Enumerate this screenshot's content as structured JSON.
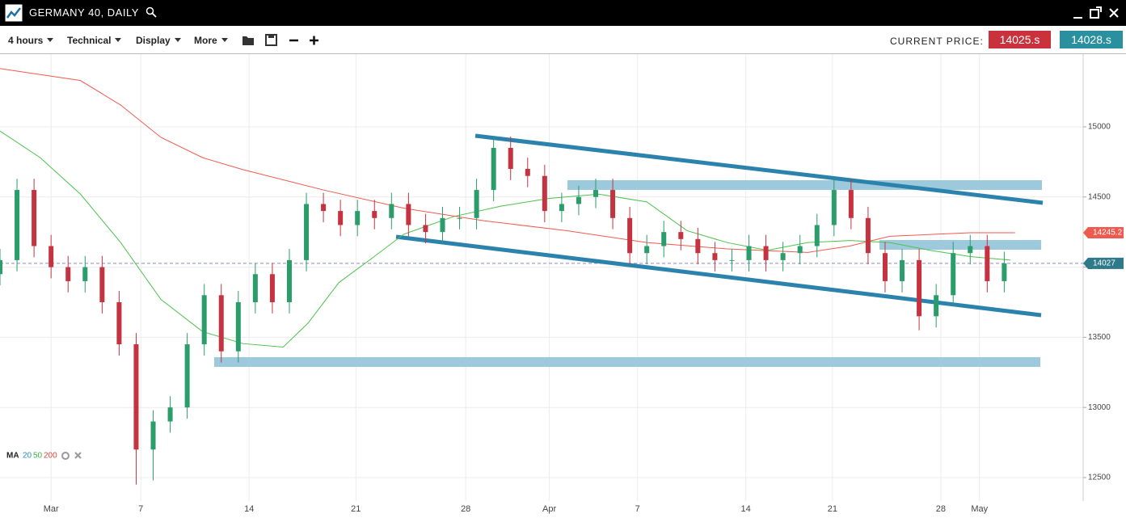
{
  "header": {
    "title": "GERMANY 40, DAILY"
  },
  "toolbar": {
    "menus": [
      "4 hours",
      "Technical",
      "Display",
      "More"
    ],
    "price_caption": "CURRENT PRICE:",
    "bid": "14025.s",
    "ask": "14028.s"
  },
  "chart_data": {
    "type": "candlestick",
    "x": [
      0,
      1.1,
      2.2,
      3.3,
      4.4,
      5.5,
      6.6,
      7.7,
      8.8,
      9.9,
      11,
      12.1,
      13.2,
      14.3,
      15.4,
      16.5,
      17.6,
      18.7,
      19.8,
      20.9,
      22,
      23.1,
      24.2,
      25.3,
      26.4,
      27.5,
      28.6,
      29.7,
      30.8,
      31.9,
      33,
      34.1,
      35.2,
      36.3,
      37.4,
      38.5,
      39.6,
      40.7,
      41.8,
      42.9,
      44,
      45.1,
      46.2,
      47.3,
      48.4,
      49.5,
      50.6,
      51.7,
      52.8,
      53.9,
      55,
      56.1,
      57.2,
      58.3,
      59.4,
      60.5,
      61.6,
      62.7,
      63.8,
      64.9
    ],
    "open": [
      13950,
      14050,
      14550,
      14150,
      14000,
      13900,
      14000,
      13750,
      13450,
      12700,
      12900,
      13000,
      13450,
      13800,
      13400,
      13750,
      13950,
      13750,
      14050,
      14450,
      14400,
      14300,
      14400,
      14350,
      14450,
      14300,
      14250,
      14350,
      14350,
      14550,
      14850,
      14700,
      14650,
      14400,
      14450,
      14500,
      14550,
      14350,
      14100,
      14150,
      14250,
      14200,
      14100,
      14050,
      14050,
      14150,
      14050,
      14100,
      14150,
      14300,
      14550,
      14350,
      14100,
      13900,
      14050,
      13650,
      13800,
      14100,
      14150,
      13900
    ],
    "high": [
      14130,
      14630,
      14630,
      14230,
      14080,
      14080,
      14080,
      13830,
      13530,
      12980,
      13080,
      13530,
      13880,
      13880,
      13830,
      14030,
      14030,
      14130,
      14530,
      14530,
      14480,
      14480,
      14480,
      14530,
      14530,
      14380,
      14430,
      14430,
      14630,
      14930,
      14930,
      14780,
      14730,
      14530,
      14580,
      14630,
      14630,
      14430,
      14230,
      14330,
      14330,
      14280,
      14180,
      14130,
      14230,
      14230,
      14180,
      14230,
      14380,
      14630,
      14630,
      14430,
      14180,
      14130,
      14130,
      13880,
      14180,
      14230,
      14230,
      14110
    ],
    "low": [
      13870,
      13970,
      14070,
      13920,
      13820,
      13820,
      13670,
      13370,
      12450,
      12480,
      12820,
      12920,
      13370,
      13320,
      13320,
      13670,
      13670,
      13670,
      13970,
      14320,
      14220,
      14220,
      14270,
      14270,
      14220,
      14170,
      14170,
      14270,
      14270,
      14470,
      14620,
      14570,
      14320,
      14320,
      14370,
      14420,
      14270,
      14020,
      14020,
      14070,
      14120,
      14020,
      13970,
      13970,
      13970,
      13970,
      13970,
      14020,
      14070,
      14220,
      14270,
      14020,
      13820,
      13820,
      13550,
      13570,
      13720,
      14020,
      13820,
      13820
    ],
    "close": [
      14050,
      14550,
      14150,
      14000,
      13900,
      14000,
      13750,
      13450,
      12700,
      12900,
      13000,
      13450,
      13800,
      13400,
      13750,
      13950,
      13750,
      14050,
      14450,
      14400,
      14300,
      14400,
      14350,
      14450,
      14300,
      14250,
      14350,
      14350,
      14550,
      14850,
      14700,
      14650,
      14400,
      14450,
      14500,
      14550,
      14350,
      14100,
      14150,
      14250,
      14200,
      14100,
      14050,
      14050,
      14150,
      14050,
      14100,
      14150,
      14300,
      14550,
      14350,
      14100,
      13900,
      14050,
      13650,
      13800,
      14100,
      14150,
      13900,
      14027
    ],
    "up_color": "#2a9d6a",
    "down_color": "#c53340",
    "series": [
      {
        "color": "#4cc24c",
        "x": [
          0,
          2.6,
          5.2,
          7.8,
          10.4,
          13.1,
          15.7,
          18.3,
          19.9,
          21.9,
          24.0,
          26.1,
          29.3,
          32.4,
          35.5,
          38.7,
          41.8,
          44.4,
          47.0,
          49.6,
          52.2,
          54.9,
          57.5,
          60.1,
          62.7,
          65.3
        ],
        "values": [
          14970,
          14780,
          14520,
          14175,
          13770,
          13540,
          13455,
          13430,
          13600,
          13890,
          14060,
          14235,
          14360,
          14435,
          14490,
          14520,
          14465,
          14260,
          14175,
          14120,
          14175,
          14190,
          14175,
          14120,
          14075,
          14050
        ]
      },
      {
        "color": "#ef5a4e",
        "x": [
          0,
          5.2,
          7.8,
          10.4,
          13.1,
          15.7,
          20.9,
          26.1,
          31.3,
          36.6,
          41.8,
          47.0,
          52.2,
          54.9,
          57.5,
          62.7,
          65.6
        ],
        "values": [
          15415,
          15330,
          15155,
          14925,
          14780,
          14695,
          14550,
          14420,
          14330,
          14260,
          14175,
          14130,
          14105,
          14150,
          14220,
          14245,
          14245.2
        ]
      }
    ],
    "ma_legend": {
      "label": "MA",
      "periods": [
        {
          "text": "20",
          "color": "#2a8fc0"
        },
        {
          "text": "50",
          "color": "#3cb043"
        },
        {
          "text": "200",
          "color": "#e0453a"
        }
      ]
    },
    "xlim": [
      0,
      70
    ],
    "xticks": [
      {
        "value": 3.3,
        "label": "Mar"
      },
      {
        "value": 9.1,
        "label": "7"
      },
      {
        "value": 16.1,
        "label": "14"
      },
      {
        "value": 23.0,
        "label": "21"
      },
      {
        "value": 30.1,
        "label": "28"
      },
      {
        "value": 35.5,
        "label": "Apr"
      },
      {
        "value": 41.2,
        "label": "7"
      },
      {
        "value": 48.2,
        "label": "14"
      },
      {
        "value": 53.8,
        "label": "21"
      },
      {
        "value": 60.8,
        "label": "28"
      },
      {
        "value": 63.3,
        "label": "May"
      }
    ],
    "ylim": [
      12333,
      15518
    ],
    "yticks": [
      12500,
      13000,
      13500,
      14000,
      14500,
      15000
    ],
    "grid": true,
    "price_tags": [
      {
        "value": 14245.2,
        "color": "#ef5a4e"
      },
      {
        "value": 14027,
        "color": "#2f7a8a"
      }
    ],
    "current_price": 14027
  }
}
